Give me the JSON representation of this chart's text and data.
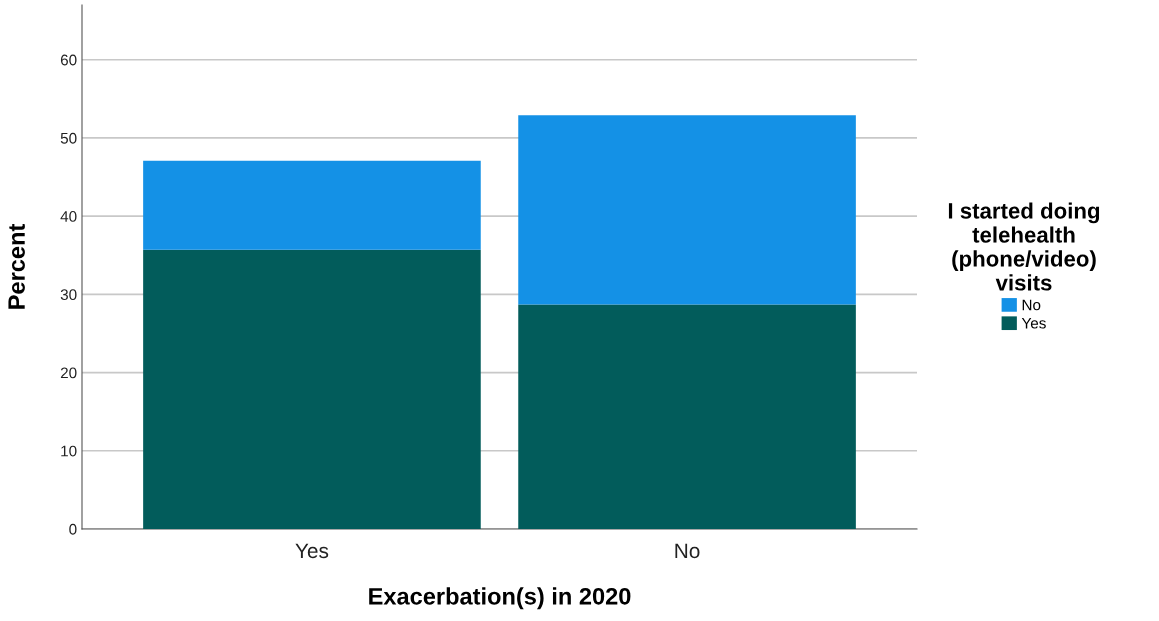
{
  "chart_data": {
    "type": "bar",
    "xlabel": "Exacerbation(s) in 2020",
    "ylabel": "Percent",
    "legend_title": "I started doing\ntelehealth\n(phone/video)\nvisits",
    "categories": [
      "Yes",
      "No"
    ],
    "stacked": true,
    "series": [
      {
        "name": "Yes",
        "color": "#025c5b",
        "values": [
          35.7,
          28.7
        ]
      },
      {
        "name": "No",
        "color": "#1491e6",
        "values": [
          11.4,
          24.2
        ]
      }
    ],
    "ylim": [
      0,
      67
    ],
    "yticks": [
      0,
      10,
      20,
      30,
      40,
      50,
      60
    ],
    "grid": "y",
    "legend": "right"
  }
}
